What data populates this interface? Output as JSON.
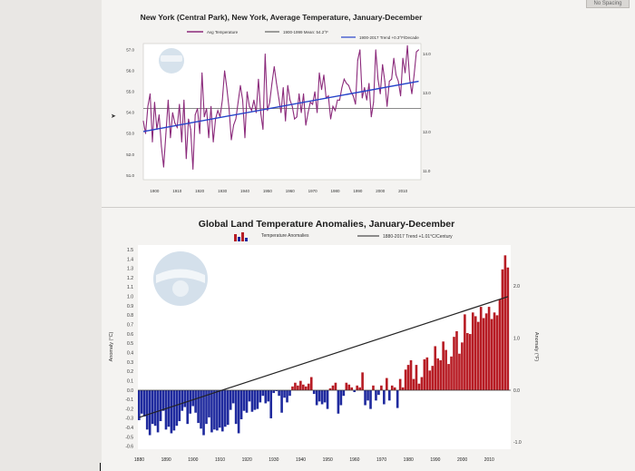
{
  "ui": {
    "top_button_label": "No Spacing"
  },
  "chart_data": [
    {
      "type": "line",
      "title": "New York (Central Park), New York, Average Temperature, January-December",
      "legend": [
        {
          "label": "Avg Temperature",
          "color": "#8b2a7b"
        },
        {
          "label": "1900-1999 Mean: 54.2°F",
          "color": "#444444"
        },
        {
          "label": "1900-2017 Trend +0.3°F/Decade",
          "color": "#2442c9"
        }
      ],
      "xlabel": "",
      "ylabel": "",
      "xticks": [
        "1900",
        "1910",
        "1920",
        "1930",
        "1940",
        "1950",
        "1960",
        "1970",
        "1980",
        "1990",
        "2000",
        "2010"
      ],
      "left_yticks": [
        "57.0",
        "56.0",
        "55.0",
        "54.0",
        "53.0",
        "52.0",
        "51.0"
      ],
      "right_yticks": [
        "14.0",
        "13.0",
        "12.0",
        "11.0"
      ],
      "xlim": [
        1895,
        2018
      ],
      "ylim": [
        50.8,
        57.3
      ],
      "mean": 54.2,
      "trend": {
        "start": [
          1895,
          53.1
        ],
        "end": [
          2017,
          55.5
        ]
      },
      "series": [
        {
          "name": "Avg Temperature",
          "x": [
            1895,
            1896,
            1897,
            1898,
            1899,
            1900,
            1901,
            1902,
            1903,
            1904,
            1905,
            1906,
            1907,
            1908,
            1909,
            1910,
            1911,
            1912,
            1913,
            1914,
            1915,
            1916,
            1917,
            1918,
            1919,
            1920,
            1921,
            1922,
            1923,
            1924,
            1925,
            1926,
            1927,
            1928,
            1929,
            1930,
            1931,
            1932,
            1933,
            1934,
            1935,
            1936,
            1937,
            1938,
            1939,
            1940,
            1941,
            1942,
            1943,
            1944,
            1945,
            1946,
            1947,
            1948,
            1949,
            1950,
            1951,
            1952,
            1953,
            1954,
            1955,
            1956,
            1957,
            1958,
            1959,
            1960,
            1961,
            1962,
            1963,
            1964,
            1965,
            1966,
            1967,
            1968,
            1969,
            1970,
            1971,
            1972,
            1973,
            1974,
            1975,
            1976,
            1977,
            1978,
            1979,
            1980,
            1981,
            1982,
            1983,
            1984,
            1985,
            1986,
            1987,
            1988,
            1989,
            1990,
            1991,
            1992,
            1993,
            1994,
            1995,
            1996,
            1997,
            1998,
            1999,
            2000,
            2001,
            2002,
            2003,
            2004,
            2005,
            2006,
            2007,
            2008,
            2009,
            2010,
            2011,
            2012,
            2013,
            2014,
            2015,
            2016,
            2017
          ],
          "values": [
            53.6,
            53.0,
            54.3,
            54.9,
            52.6,
            54.5,
            53.2,
            53.9,
            52.4,
            51.4,
            53.0,
            54.6,
            52.8,
            54.0,
            53.5,
            53.3,
            54.4,
            52.6,
            54.6,
            51.8,
            53.7,
            53.2,
            51.3,
            53.9,
            54.2,
            53.0,
            55.9,
            53.8,
            54.2,
            52.8,
            54.3,
            52.6,
            53.7,
            54.1,
            53.8,
            54.6,
            56.0,
            55.2,
            54.2,
            52.7,
            53.4,
            53.7,
            54.5,
            55.3,
            54.6,
            52.8,
            55.0,
            54.3,
            54.1,
            54.6,
            54.0,
            55.6,
            54.0,
            53.2,
            56.8,
            54.1,
            54.5,
            55.4,
            56.2,
            55.4,
            54.7,
            54.0,
            55.2,
            53.6,
            55.3,
            54.6,
            54.3,
            53.7,
            53.8,
            54.9,
            54.0,
            54.9,
            53.4,
            54.0,
            54.5,
            54.4,
            55.0,
            54.0,
            55.9,
            55.1,
            55.8,
            54.7,
            54.8,
            53.7,
            54.3,
            54.1,
            54.6,
            54.6,
            55.2,
            55.6,
            55.4,
            55.3,
            55.0,
            54.8,
            54.4,
            56.5,
            57.0,
            54.7,
            55.2,
            54.6,
            55.4,
            53.8,
            54.5,
            57.0,
            55.6,
            54.9,
            56.3,
            55.5,
            54.3,
            55.5,
            55.6,
            56.6,
            55.8,
            55.5,
            54.8,
            56.6,
            55.9,
            57.2,
            55.6,
            54.9,
            55.8,
            56.9,
            57.0
          ]
        }
      ]
    },
    {
      "type": "bar",
      "title": "Global Land Temperature Anomalies, January-December",
      "legend": [
        {
          "label": "Temperature Anomalies",
          "color": "#b71c24"
        },
        {
          "label": "1880-2017 Trend +1.01°C/Century",
          "color": "#222222"
        }
      ],
      "ylabel": "Anomaly (°C)",
      "right_ylabel": "Anomaly (°F)",
      "xticks": [
        "1880",
        "1890",
        "1900",
        "1910",
        "1920",
        "1930",
        "1940",
        "1950",
        "1960",
        "1970",
        "1980",
        "1990",
        "2000",
        "2010"
      ],
      "left_yticks": [
        "1.5",
        "1.4",
        "1.3",
        "1.2",
        "1.1",
        "1.0",
        "0.9",
        "0.8",
        "0.7",
        "0.6",
        "0.5",
        "0.4",
        "0.3",
        "0.2",
        "0.1",
        "0.0",
        "-0.1",
        "-0.2",
        "-0.3",
        "-0.4",
        "-0.5",
        "-0.6"
      ],
      "right_yticks": [
        "2.0",
        "1.0",
        "0.0",
        "-1.0"
      ],
      "xlim": [
        1879.5,
        2018
      ],
      "ylim": [
        -0.63,
        1.55
      ],
      "trend": {
        "start": [
          1880,
          -0.29
        ],
        "end": [
          2017,
          1.0
        ]
      },
      "positive_color": "#b71c24",
      "negative_color": "#1f2a9e",
      "x_start": 1880,
      "values": [
        -0.32,
        -0.25,
        -0.28,
        -0.42,
        -0.48,
        -0.36,
        -0.38,
        -0.45,
        -0.33,
        -0.22,
        -0.42,
        -0.39,
        -0.46,
        -0.43,
        -0.38,
        -0.33,
        -0.22,
        -0.18,
        -0.36,
        -0.25,
        -0.17,
        -0.24,
        -0.35,
        -0.41,
        -0.48,
        -0.36,
        -0.29,
        -0.45,
        -0.42,
        -0.43,
        -0.4,
        -0.44,
        -0.39,
        -0.37,
        -0.21,
        -0.14,
        -0.36,
        -0.46,
        -0.31,
        -0.22,
        -0.24,
        -0.12,
        -0.23,
        -0.21,
        -0.2,
        -0.13,
        -0.06,
        -0.14,
        -0.12,
        -0.3,
        -0.03,
        -0.01,
        -0.06,
        -0.24,
        -0.08,
        -0.13,
        -0.06,
        0.04,
        0.08,
        0.05,
        0.1,
        0.06,
        0.04,
        0.07,
        0.14,
        -0.04,
        -0.16,
        -0.12,
        -0.15,
        -0.13,
        -0.2,
        0.02,
        0.05,
        0.08,
        -0.25,
        -0.16,
        -0.06,
        0.08,
        0.06,
        0.03,
        -0.02,
        0.05,
        0.03,
        0.19,
        -0.16,
        -0.11,
        -0.2,
        0.05,
        -0.11,
        -0.05,
        0.05,
        -0.15,
        0.13,
        -0.11,
        0.05,
        0.03,
        -0.19,
        0.12,
        0.03,
        0.22,
        0.27,
        0.32,
        0.12,
        0.27,
        0.07,
        0.14,
        0.33,
        0.35,
        0.21,
        0.26,
        0.47,
        0.34,
        0.32,
        0.52,
        0.43,
        0.28,
        0.36,
        0.57,
        0.63,
        0.39,
        0.51,
        0.81,
        0.61,
        0.6,
        0.83,
        0.79,
        0.73,
        0.89,
        0.77,
        0.82,
        0.89,
        0.76,
        0.83,
        0.8,
        0.97,
        1.29,
        1.44,
        1.31
      ]
    }
  ]
}
